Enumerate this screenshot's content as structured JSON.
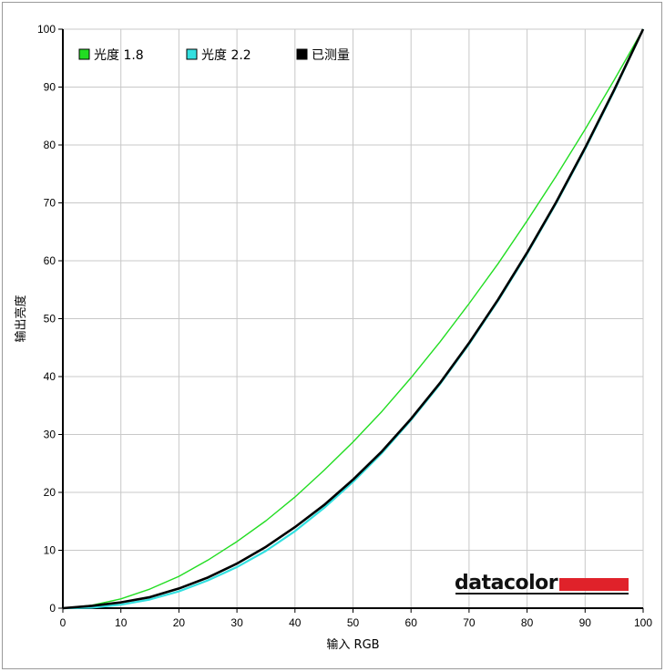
{
  "chart_data": {
    "type": "line",
    "xlabel": "输入 RGB",
    "ylabel": "输出亮度",
    "xlim": [
      0,
      100
    ],
    "ylim": [
      0,
      100
    ],
    "x_ticks": [
      0,
      10,
      20,
      30,
      40,
      50,
      60,
      70,
      80,
      90,
      100
    ],
    "y_ticks": [
      0,
      10,
      20,
      30,
      40,
      50,
      60,
      70,
      80,
      90,
      100
    ],
    "grid": true,
    "legend_position": "top-left",
    "series": [
      {
        "name": "光度 1.8",
        "color": "#22dd22",
        "x": [
          0,
          5,
          10,
          15,
          20,
          25,
          30,
          35,
          40,
          45,
          50,
          55,
          60,
          65,
          70,
          75,
          80,
          85,
          90,
          95,
          100
        ],
        "y": [
          0,
          0.5,
          1.6,
          3.3,
          5.5,
          8.3,
          11.5,
          15.1,
          19.2,
          23.8,
          28.7,
          34.0,
          39.8,
          46.0,
          52.6,
          59.5,
          66.9,
          74.6,
          82.7,
          91.2,
          100
        ]
      },
      {
        "name": "光度 2.2",
        "color": "#33e0e0",
        "x": [
          0,
          5,
          10,
          15,
          20,
          25,
          30,
          35,
          40,
          45,
          50,
          55,
          60,
          65,
          70,
          75,
          80,
          85,
          90,
          95,
          100
        ],
        "y": [
          0,
          0.1,
          0.6,
          1.5,
          2.9,
          4.8,
          7.1,
          9.9,
          13.3,
          17.3,
          21.8,
          26.8,
          32.5,
          38.7,
          45.6,
          53.1,
          61.2,
          69.9,
          79.3,
          89.3,
          100
        ]
      },
      {
        "name": "已测量",
        "color": "#000000",
        "x": [
          0,
          5,
          10,
          15,
          20,
          25,
          30,
          35,
          40,
          45,
          50,
          55,
          60,
          65,
          70,
          75,
          80,
          85,
          90,
          95,
          100
        ],
        "y": [
          0,
          0.4,
          1.0,
          1.9,
          3.4,
          5.3,
          7.7,
          10.6,
          14.0,
          17.8,
          22.2,
          27.1,
          32.7,
          38.9,
          45.8,
          53.3,
          61.4,
          70.1,
          79.5,
          89.5,
          100
        ]
      }
    ]
  },
  "logo": {
    "text": "datacolor",
    "accent_color": "#e0222a"
  }
}
